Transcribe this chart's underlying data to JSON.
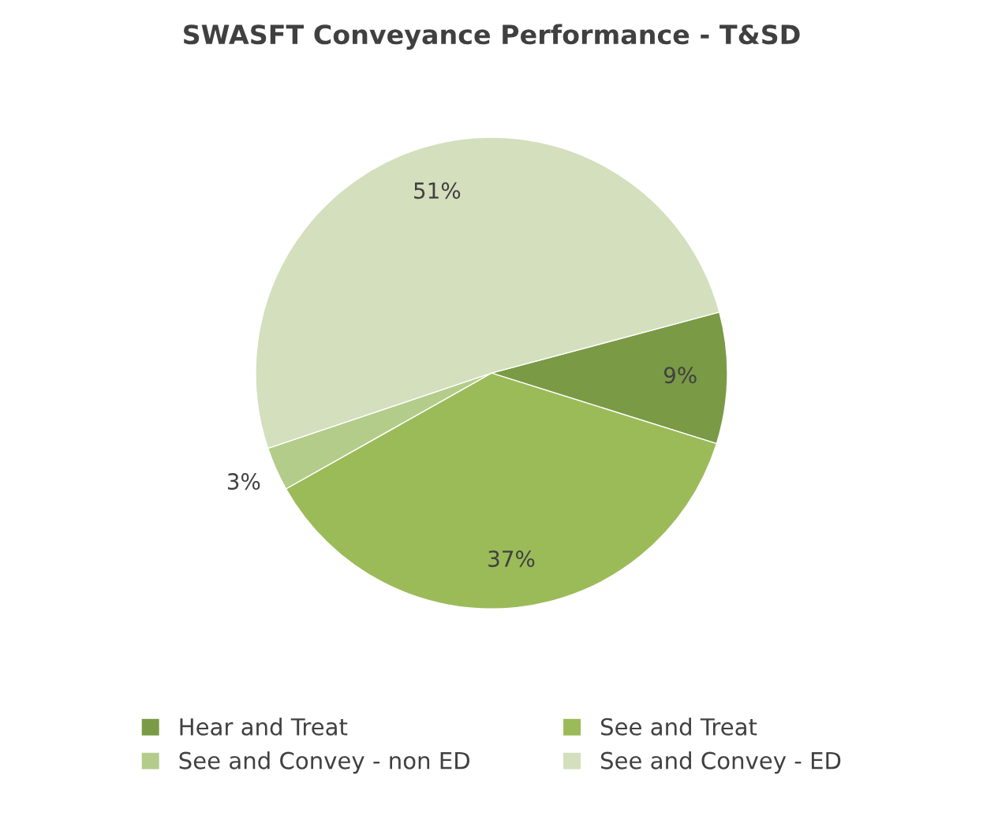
{
  "chart_data": {
    "type": "pie",
    "title": "SWASFT Conveyance Performance - T&SD",
    "categories": [
      "Hear and Treat",
      "See and Treat",
      "See and Convey - non ED",
      "See and Convey - ED"
    ],
    "values": [
      9,
      37,
      3,
      51
    ],
    "colors": [
      "#7a9a45",
      "#9bbb59",
      "#b3cc8a",
      "#d3dfbd"
    ],
    "value_labels": [
      "9%",
      "37%",
      "3%",
      "51%"
    ],
    "legend": "bottom"
  }
}
